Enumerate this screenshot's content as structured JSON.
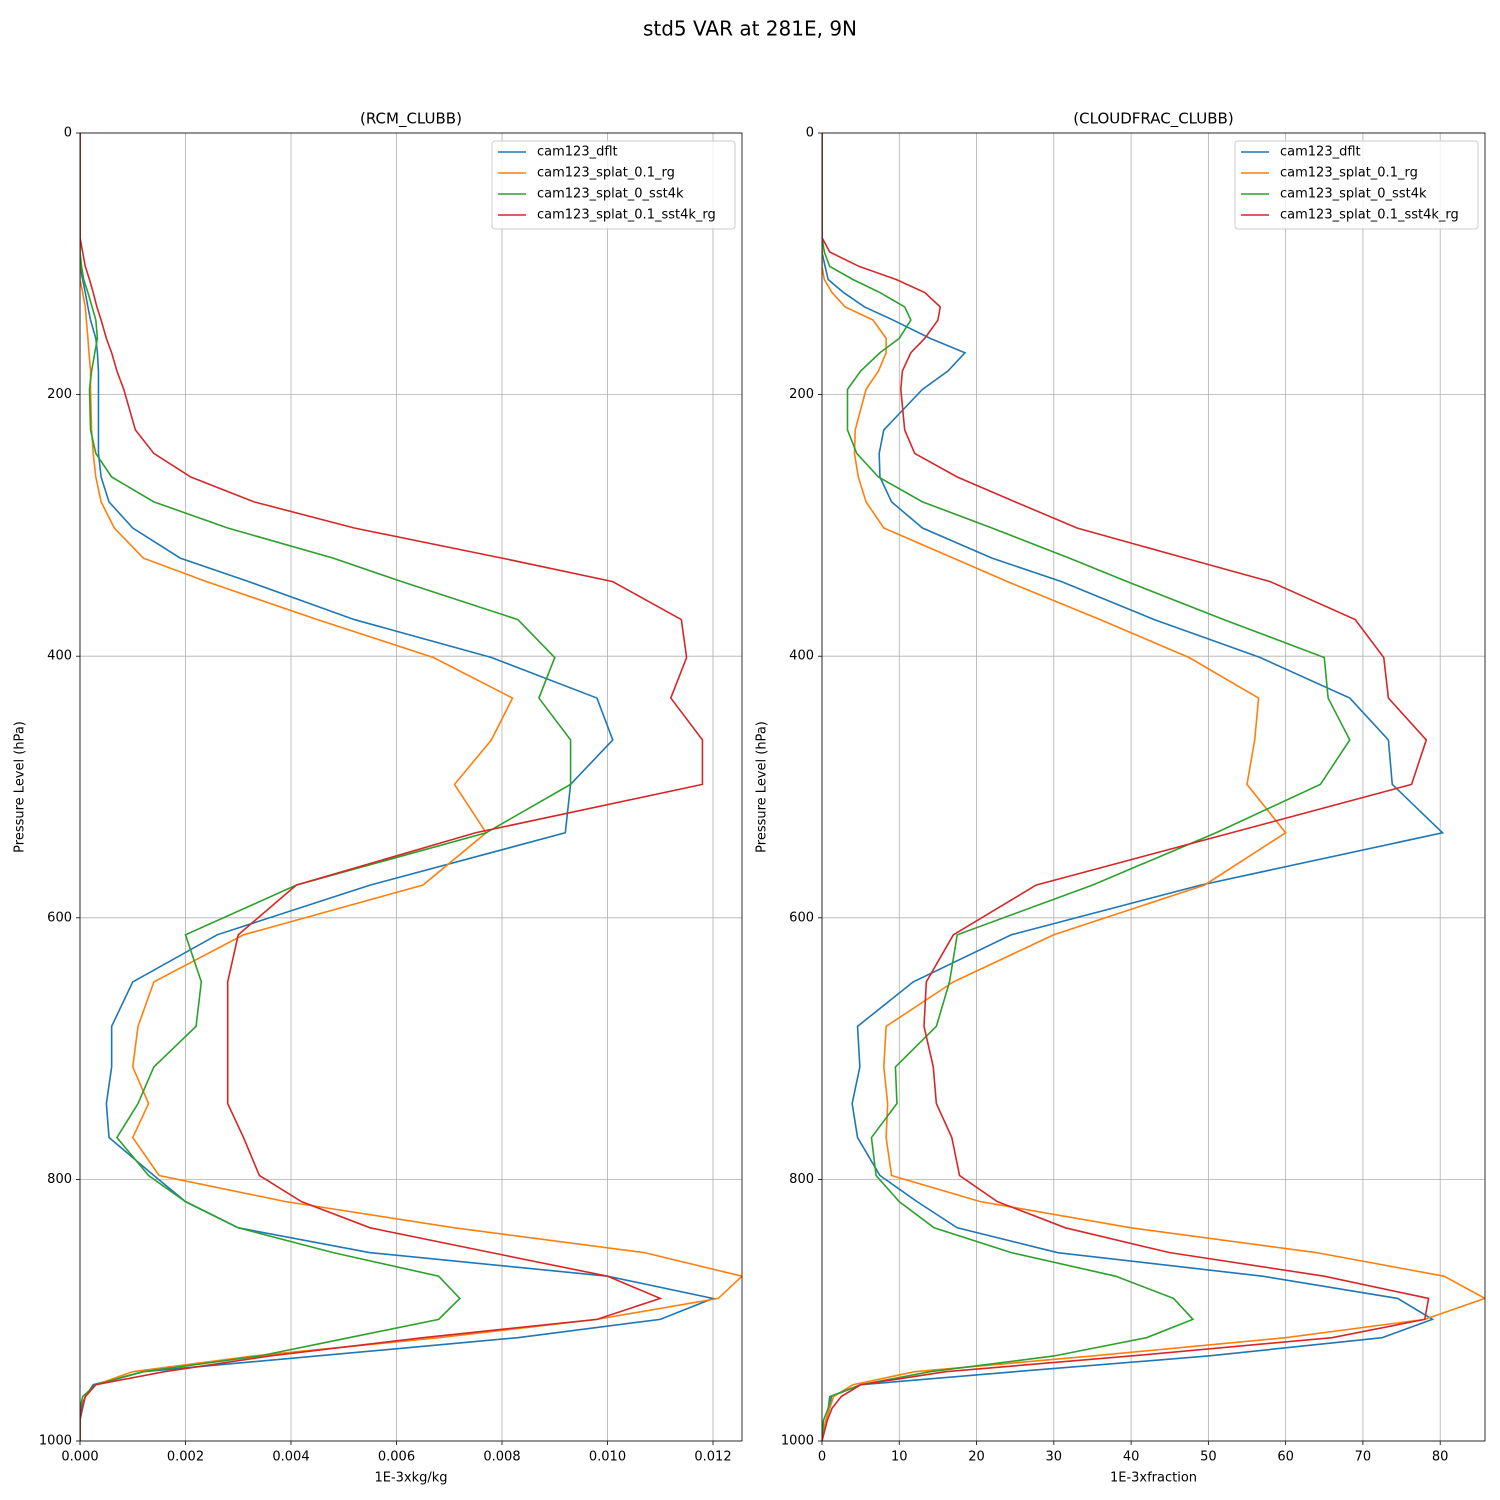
{
  "title": "std5 VAR at 281E, 9N",
  "chart_data": [
    {
      "type": "line",
      "title": "(RCM_CLUBB)",
      "xlabel": "1E-3xkg/kg",
      "ylabel": "Pressure Level (hPa)",
      "levels": [
        0,
        80,
        91,
        102,
        112,
        122,
        133,
        143,
        157,
        168,
        182,
        196,
        227,
        245,
        263,
        282,
        302,
        325,
        343,
        372,
        401,
        432,
        464,
        498,
        535,
        575,
        613,
        649,
        683,
        714,
        742,
        768,
        797,
        817,
        837,
        856,
        874,
        891,
        907,
        921,
        935,
        947,
        957,
        966,
        975,
        984,
        1000
      ],
      "series": [
        {
          "name": "cam123_dflt",
          "color": "#1f77b4",
          "values": [
            0,
            0,
            0,
            0,
            5e-05,
            0.0001,
            0.00015,
            0.0002,
            0.0003,
            0.00033,
            0.00035,
            0.00035,
            0.00035,
            0.00035,
            0.0004,
            0.00055,
            0.001,
            0.0019,
            0.0032,
            0.0052,
            0.0078,
            0.0098,
            0.0101,
            0.0093,
            0.0092,
            0.0055,
            0.0026,
            0.001,
            0.0006,
            0.0006,
            0.0005,
            0.00055,
            0.0014,
            0.002,
            0.003,
            0.0055,
            0.01,
            0.012,
            0.011,
            0.0083,
            0.0045,
            0.0012,
            0.00025,
            0.0001,
            5e-05,
            0,
            0
          ]
        },
        {
          "name": "cam123_splat_0.1_rg",
          "color": "#ff7f0e",
          "values": [
            0,
            0,
            0,
            0,
            0,
            5e-05,
            0.0001,
            0.00012,
            0.00015,
            0.00017,
            0.0002,
            0.0002,
            0.00022,
            0.00025,
            0.0003,
            0.0004,
            0.00065,
            0.0012,
            0.0024,
            0.0045,
            0.0067,
            0.0082,
            0.0078,
            0.0071,
            0.0077,
            0.0065,
            0.0031,
            0.0014,
            0.0011,
            0.001,
            0.0013,
            0.001,
            0.0015,
            0.0039,
            0.0071,
            0.0107,
            0.01255,
            0.0121,
            0.0098,
            0.0068,
            0.0033,
            0.001,
            0.0003,
            0.0001,
            0,
            0,
            0
          ]
        },
        {
          "name": "cam123_splat_0_sst4k",
          "color": "#2ca02c",
          "values": [
            0,
            0,
            0,
            3e-05,
            7e-05,
            0.00015,
            0.00023,
            0.0003,
            0.00033,
            0.00028,
            0.00022,
            0.00018,
            0.0002,
            0.0003,
            0.0006,
            0.0014,
            0.0028,
            0.0048,
            0.0061,
            0.0083,
            0.009,
            0.0087,
            0.0093,
            0.0093,
            0.0077,
            0.0041,
            0.002,
            0.0023,
            0.0022,
            0.0014,
            0.0011,
            0.0007,
            0.0013,
            0.002,
            0.003,
            0.0048,
            0.0068,
            0.0072,
            0.0068,
            0.0051,
            0.0034,
            0.0012,
            0.0003,
            5e-05,
            0,
            0,
            0
          ]
        },
        {
          "name": "cam123_splat_0.1_sst4k_rg",
          "color": "#d62728",
          "values": [
            0,
            0,
            5e-05,
            0.0001,
            0.00018,
            0.00025,
            0.00032,
            0.0004,
            0.0005,
            0.0006,
            0.0007,
            0.00083,
            0.00105,
            0.0014,
            0.0021,
            0.0033,
            0.0052,
            0.008,
            0.0101,
            0.0114,
            0.0115,
            0.0112,
            0.0118,
            0.0118,
            0.0075,
            0.0041,
            0.003,
            0.0028,
            0.0028,
            0.0028,
            0.0028,
            0.0031,
            0.0034,
            0.0042,
            0.0055,
            0.0078,
            0.01,
            0.011,
            0.0098,
            0.0065,
            0.0036,
            0.0016,
            0.0003,
            0.0001,
            3e-05,
            0,
            0
          ]
        }
      ],
      "xlim": [
        0,
        0.01255
      ],
      "ylim": [
        1000,
        0
      ],
      "xticks": [
        {
          "value": 0,
          "label": "0.000"
        },
        {
          "value": 0.002,
          "label": "0.002"
        },
        {
          "value": 0.004,
          "label": "0.004"
        },
        {
          "value": 0.006,
          "label": "0.006"
        },
        {
          "value": 0.008,
          "label": "0.008"
        },
        {
          "value": 0.01,
          "label": "0.010"
        },
        {
          "value": 0.012,
          "label": "0.012"
        }
      ],
      "yticks": [
        0,
        200,
        400,
        600,
        800,
        1000
      ],
      "grid": true,
      "legend": "upper right"
    },
    {
      "type": "line",
      "title": "(CLOUDFRAC_CLUBB)",
      "xlabel": "1E-3xfraction",
      "ylabel": "Pressure Level (hPa)",
      "levels": [
        0,
        80,
        91,
        102,
        112,
        122,
        133,
        143,
        157,
        168,
        182,
        196,
        227,
        245,
        263,
        282,
        302,
        325,
        343,
        372,
        401,
        432,
        464,
        498,
        535,
        575,
        613,
        649,
        683,
        714,
        742,
        768,
        797,
        817,
        837,
        856,
        874,
        891,
        907,
        921,
        935,
        947,
        957,
        966,
        975,
        984,
        1000
      ],
      "series": [
        {
          "name": "cam123_dflt",
          "color": "#1f77b4",
          "values": [
            0,
            0,
            0,
            0.4,
            0.8,
            2.8,
            5.5,
            9.2,
            14,
            18.5,
            16.3,
            13,
            8,
            7.4,
            7.5,
            9,
            13,
            22,
            31,
            43,
            56.7,
            68.3,
            73.3,
            73.8,
            80.3,
            49,
            24.5,
            11.8,
            4.6,
            4.9,
            3.9,
            4.6,
            7.5,
            12.3,
            17.5,
            30.5,
            57,
            74.5,
            79,
            72.5,
            50,
            25,
            5,
            1.2,
            1,
            0.5,
            0
          ]
        },
        {
          "name": "cam123_splat_0.1_rg",
          "color": "#ff7f0e",
          "values": [
            0,
            0,
            0,
            0,
            0.3,
            1.3,
            3,
            6.6,
            8.3,
            8.3,
            7.3,
            5.7,
            4.3,
            4.2,
            4.7,
            5.7,
            8,
            17,
            24,
            36,
            47.5,
            56.5,
            56,
            55,
            60,
            49.5,
            30,
            17,
            8.3,
            8,
            8.5,
            8.3,
            9,
            20.5,
            40,
            64,
            80.5,
            85.8,
            78,
            60,
            35,
            12,
            4,
            1.5,
            1,
            0.5,
            0
          ]
        },
        {
          "name": "cam123_splat_0_sst4k",
          "color": "#2ca02c",
          "values": [
            0,
            0,
            0.3,
            1,
            4,
            7.5,
            10.7,
            11.5,
            10,
            7.5,
            5,
            3.3,
            3.3,
            4.5,
            7.3,
            13,
            22,
            32,
            39.5,
            52,
            65,
            65.5,
            68.3,
            64.5,
            51,
            35,
            17.5,
            16.5,
            14.8,
            9.5,
            9.7,
            6.4,
            7,
            10,
            14.5,
            24.5,
            38,
            45.5,
            48,
            42,
            30,
            14,
            5,
            1,
            0.8,
            0.2,
            0
          ]
        },
        {
          "name": "cam123_splat_0.1_sst4k_rg",
          "color": "#d62728",
          "values": [
            0,
            0,
            1,
            4.8,
            9.6,
            13.3,
            15.3,
            15,
            13.3,
            11.5,
            10.4,
            10.2,
            10.7,
            12,
            17.5,
            25,
            33,
            47,
            58,
            69,
            72.7,
            73.3,
            78.2,
            76.3,
            53,
            27.7,
            17,
            13.5,
            13.2,
            14.4,
            14.8,
            16.8,
            17.8,
            22.7,
            31.5,
            45,
            65,
            78.5,
            78,
            66,
            40,
            16,
            5,
            2.5,
            1.3,
            0.7,
            0
          ]
        }
      ],
      "xlim": [
        0,
        85.8
      ],
      "ylim": [
        1000,
        0
      ],
      "xticks": [
        0,
        10,
        20,
        30,
        40,
        50,
        60,
        70,
        80
      ],
      "yticks": [
        0,
        200,
        400,
        600,
        800,
        1000
      ],
      "grid": true,
      "legend": "upper right"
    }
  ]
}
